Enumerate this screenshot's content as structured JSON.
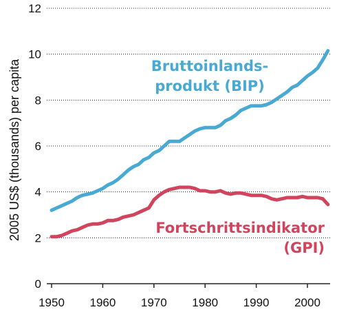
{
  "chart_data": {
    "type": "line",
    "title": "",
    "xlabel": "",
    "ylabel": "2005 US$ (thousands) per capita",
    "xlim": [
      1949,
      2004
    ],
    "ylim": [
      0,
      12
    ],
    "xticks": [
      1950,
      1960,
      1970,
      1980,
      1990,
      2000
    ],
    "yticks": [
      0,
      2,
      4,
      6,
      8,
      10,
      12
    ],
    "grid": "horizontal dotted",
    "series": [
      {
        "name_lines": [
          "Bruttoinlands-",
          "produkt (BIP)"
        ],
        "color": "#48a9d2",
        "points": [
          [
            1950,
            3.2
          ],
          [
            1951,
            3.3
          ],
          [
            1952,
            3.4
          ],
          [
            1953,
            3.5
          ],
          [
            1954,
            3.6
          ],
          [
            1955,
            3.75
          ],
          [
            1956,
            3.85
          ],
          [
            1957,
            3.9
          ],
          [
            1958,
            3.95
          ],
          [
            1959,
            4.05
          ],
          [
            1960,
            4.15
          ],
          [
            1961,
            4.3
          ],
          [
            1962,
            4.4
          ],
          [
            1963,
            4.55
          ],
          [
            1964,
            4.75
          ],
          [
            1965,
            4.95
          ],
          [
            1966,
            5.1
          ],
          [
            1967,
            5.2
          ],
          [
            1968,
            5.4
          ],
          [
            1969,
            5.5
          ],
          [
            1970,
            5.7
          ],
          [
            1971,
            5.8
          ],
          [
            1972,
            6.0
          ],
          [
            1973,
            6.2
          ],
          [
            1974,
            6.2
          ],
          [
            1975,
            6.2
          ],
          [
            1976,
            6.35
          ],
          [
            1977,
            6.5
          ],
          [
            1978,
            6.65
          ],
          [
            1979,
            6.75
          ],
          [
            1980,
            6.8
          ],
          [
            1981,
            6.8
          ],
          [
            1982,
            6.8
          ],
          [
            1983,
            6.9
          ],
          [
            1984,
            7.1
          ],
          [
            1985,
            7.2
          ],
          [
            1986,
            7.35
          ],
          [
            1987,
            7.55
          ],
          [
            1988,
            7.65
          ],
          [
            1989,
            7.75
          ],
          [
            1990,
            7.75
          ],
          [
            1991,
            7.75
          ],
          [
            1992,
            7.8
          ],
          [
            1993,
            7.9
          ],
          [
            1994,
            8.05
          ],
          [
            1995,
            8.2
          ],
          [
            1996,
            8.35
          ],
          [
            1997,
            8.55
          ],
          [
            1998,
            8.65
          ],
          [
            1999,
            8.85
          ],
          [
            2000,
            9.05
          ],
          [
            2001,
            9.2
          ],
          [
            2002,
            9.4
          ],
          [
            2003,
            9.75
          ],
          [
            2004,
            10.15
          ]
        ]
      },
      {
        "name_lines": [
          "Fortschrittsindikator",
          "(GPI)"
        ],
        "color": "#d0445e",
        "points": [
          [
            1950,
            2.05
          ],
          [
            1951,
            2.05
          ],
          [
            1952,
            2.1
          ],
          [
            1953,
            2.2
          ],
          [
            1954,
            2.3
          ],
          [
            1955,
            2.35
          ],
          [
            1956,
            2.45
          ],
          [
            1957,
            2.55
          ],
          [
            1958,
            2.6
          ],
          [
            1959,
            2.6
          ],
          [
            1960,
            2.65
          ],
          [
            1961,
            2.75
          ],
          [
            1962,
            2.75
          ],
          [
            1963,
            2.8
          ],
          [
            1964,
            2.9
          ],
          [
            1965,
            2.95
          ],
          [
            1966,
            3.0
          ],
          [
            1967,
            3.1
          ],
          [
            1968,
            3.2
          ],
          [
            1969,
            3.3
          ],
          [
            1970,
            3.65
          ],
          [
            1971,
            3.85
          ],
          [
            1972,
            4.0
          ],
          [
            1973,
            4.1
          ],
          [
            1974,
            4.15
          ],
          [
            1975,
            4.2
          ],
          [
            1976,
            4.2
          ],
          [
            1977,
            4.2
          ],
          [
            1978,
            4.15
          ],
          [
            1979,
            4.05
          ],
          [
            1980,
            4.05
          ],
          [
            1981,
            4.0
          ],
          [
            1982,
            4.0
          ],
          [
            1983,
            4.05
          ],
          [
            1984,
            3.95
          ],
          [
            1985,
            3.9
          ],
          [
            1986,
            3.95
          ],
          [
            1987,
            3.95
          ],
          [
            1988,
            3.9
          ],
          [
            1989,
            3.85
          ],
          [
            1990,
            3.85
          ],
          [
            1991,
            3.85
          ],
          [
            1992,
            3.8
          ],
          [
            1993,
            3.7
          ],
          [
            1994,
            3.65
          ],
          [
            1995,
            3.7
          ],
          [
            1996,
            3.75
          ],
          [
            1997,
            3.75
          ],
          [
            1998,
            3.75
          ],
          [
            1999,
            3.8
          ],
          [
            2000,
            3.75
          ],
          [
            2001,
            3.75
          ],
          [
            2002,
            3.75
          ],
          [
            2003,
            3.7
          ],
          [
            2004,
            3.45
          ]
        ]
      }
    ]
  }
}
